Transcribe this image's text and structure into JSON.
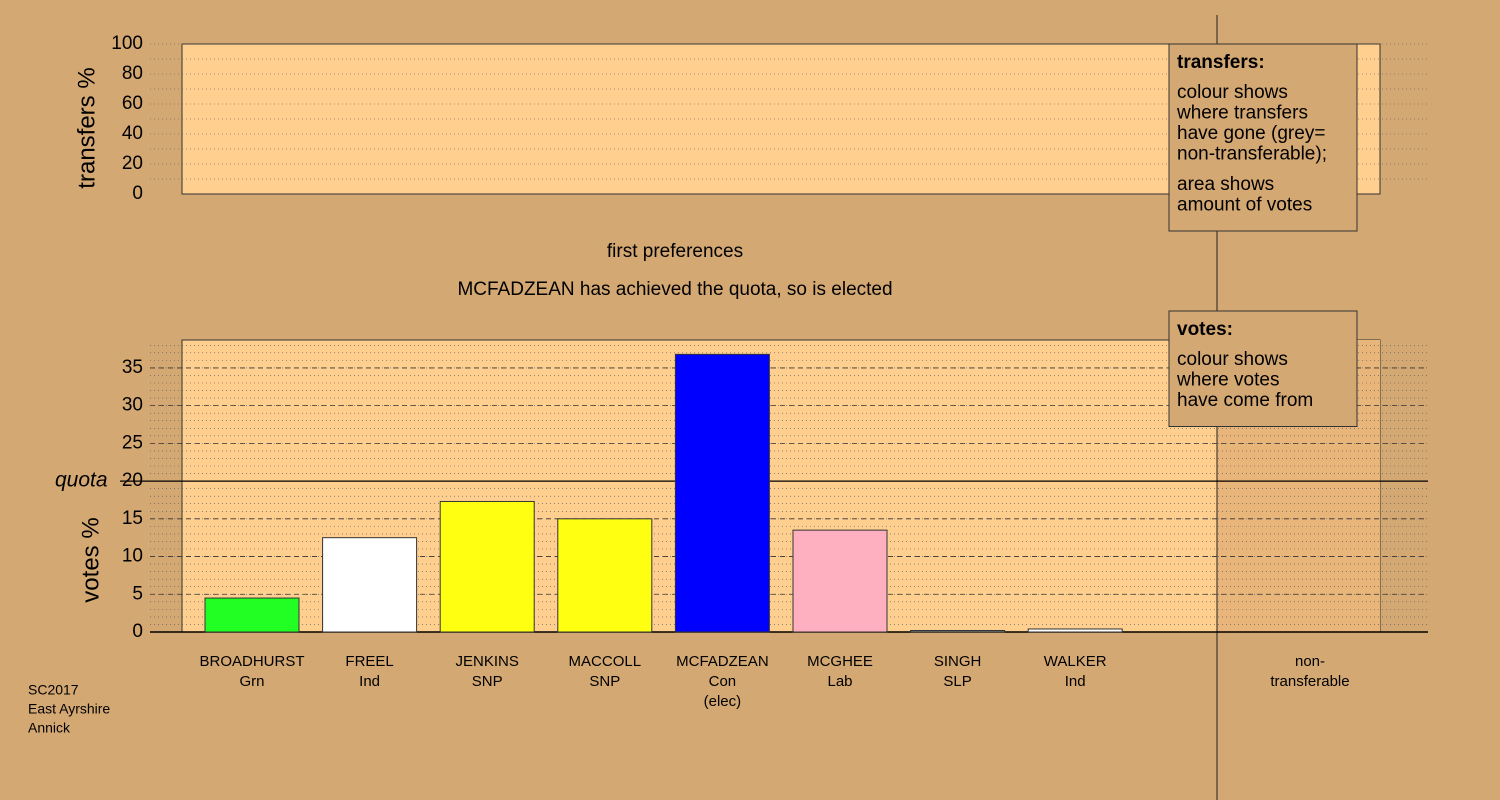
{
  "chart_data": [
    {
      "type": "bar",
      "ylabel": "transfers %",
      "ylim": [
        0,
        100
      ],
      "yticks": [
        0,
        20,
        40,
        60,
        80,
        100
      ],
      "minor_grid_step": 10,
      "legend": {
        "title": "transfers:",
        "paragraphs": [
          [
            "colour shows",
            "where transfers",
            "have gone (grey=",
            "non-transferable);"
          ],
          [
            "area shows",
            "amount of votes"
          ]
        ]
      }
    },
    {
      "type": "bar",
      "title": "first preferences",
      "subtitle": "MCFADZEAN has achieved the quota, so is elected",
      "ylabel": "votes %",
      "ylim": [
        0,
        38.7
      ],
      "yticks": [
        0,
        5,
        10,
        15,
        20,
        25,
        30,
        35
      ],
      "minor_grid_step": 1,
      "quota": {
        "label": "quota",
        "value": 20
      },
      "categories": [
        [
          "BROADHURST",
          "Grn"
        ],
        [
          "FREEL",
          "Ind"
        ],
        [
          "JENKINS",
          "SNP"
        ],
        [
          "MACCOLL",
          "SNP"
        ],
        [
          "MCFADZEAN",
          "Con",
          "(elec)"
        ],
        [
          "MCGHEE",
          "Lab"
        ],
        [
          "SINGH",
          "SLP"
        ],
        [
          "WALKER",
          "Ind"
        ],
        [
          "non-",
          "transferable"
        ]
      ],
      "values": [
        4.5,
        12.5,
        17.3,
        15.0,
        36.8,
        13.5,
        0.2,
        0.4,
        0
      ],
      "colors": [
        "#22ff22",
        "#ffffff",
        "#ffff11",
        "#ffff11",
        "#0000ff",
        "#ffb0c0",
        "#888888",
        "#ffffff",
        "#888888"
      ],
      "legend": {
        "title": "votes:",
        "paragraphs": [
          [
            "colour shows",
            "where votes",
            "have come from"
          ]
        ]
      }
    }
  ],
  "footer": [
    "SC2017",
    "East Ayrshire",
    "Annick"
  ]
}
